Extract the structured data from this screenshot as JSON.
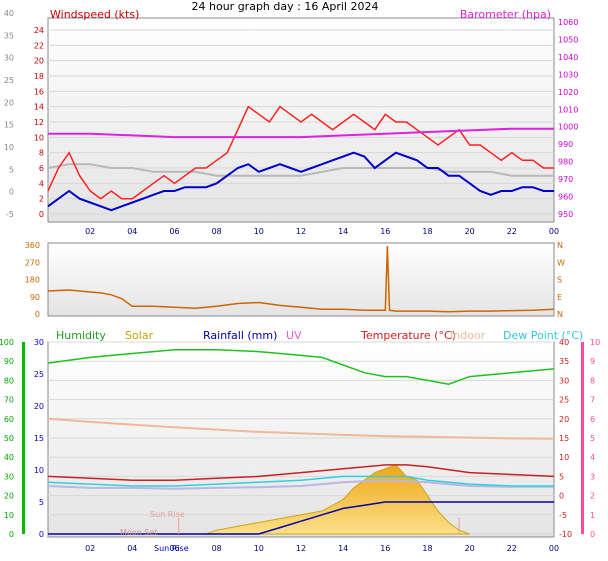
{
  "title": "24 hour graph day : 16 April 2024",
  "colors": {
    "wind": "#cc0000",
    "wind_gust": "#ff2020",
    "wind_avg": "#0000cc",
    "wind_grey": "#b8b8b8",
    "baro": "#e020e0",
    "dir": "#cc6600",
    "humidity": "#20c020",
    "solar": "#c8a000",
    "rainfall": "#0000aa",
    "uv": "#e060c0",
    "temperature": "#cc2020",
    "indoor": "#f0b898",
    "dewpoint": "#30d0e0",
    "rain_axis": "#0000cc",
    "left_green": "#00bb00",
    "right_pink": "#ff4a9a"
  },
  "chart_data": [
    {
      "type": "line",
      "name": "wind_baro",
      "labels": {
        "left": "Windspeed (kts)",
        "right": "Barometer (hpa)"
      },
      "y_left": {
        "ticks": [
          "24",
          "22",
          "20",
          "18",
          "16",
          "14",
          "12",
          "10",
          "8",
          "6",
          "4",
          "2",
          "0"
        ],
        "ylim": [
          0,
          24
        ]
      },
      "y_left_outer": {
        "ticks": [
          "40",
          "35",
          "30",
          "25",
          "20",
          "15",
          "10",
          "5",
          "0",
          "-5"
        ]
      },
      "y_right": {
        "ticks": [
          "1060",
          "1050",
          "1040",
          "1030",
          "1020",
          "1010",
          "1000",
          "990",
          "980",
          "970",
          "960",
          "950"
        ],
        "ylim": [
          950,
          1060
        ]
      },
      "x_ticks": [
        "02",
        "04",
        "06",
        "08",
        "10",
        "12",
        "14",
        "16",
        "18",
        "20",
        "22",
        "00"
      ],
      "series": {
        "gust": {
          "x": [
            0,
            0.5,
            1,
            1.5,
            2,
            2.5,
            3,
            3.5,
            4,
            4.5,
            5,
            5.5,
            6,
            6.5,
            7,
            7.5,
            8,
            8.5,
            9,
            9.5,
            10,
            10.5,
            11,
            11.5,
            12,
            12.5,
            13,
            13.5,
            14,
            14.5,
            15,
            15.5,
            16,
            16.5,
            17,
            17.5,
            18,
            18.5,
            19,
            19.5,
            20,
            20.5,
            21,
            21.5,
            22,
            22.5,
            23,
            23.5,
            24
          ],
          "y": [
            3,
            6,
            8,
            5,
            3,
            2,
            3,
            2,
            2,
            3,
            4,
            5,
            4,
            5,
            6,
            6,
            7,
            8,
            11,
            14,
            13,
            12,
            14,
            13,
            12,
            13,
            12,
            11,
            12,
            13,
            12,
            11,
            13,
            12,
            12,
            11,
            10,
            9,
            10,
            11,
            9,
            9,
            8,
            7,
            8,
            7,
            7,
            6,
            6
          ]
        },
        "average": {
          "x": [
            0,
            0.5,
            1,
            1.5,
            2,
            2.5,
            3,
            3.5,
            4,
            4.5,
            5,
            5.5,
            6,
            6.5,
            7,
            7.5,
            8,
            8.5,
            9,
            9.5,
            10,
            10.5,
            11,
            11.5,
            12,
            12.5,
            13,
            13.5,
            14,
            14.5,
            15,
            15.5,
            16,
            16.5,
            17,
            17.5,
            18,
            18.5,
            19,
            19.5,
            20,
            20.5,
            21,
            21.5,
            22,
            22.5,
            23,
            23.5,
            24
          ],
          "y": [
            1,
            2,
            3,
            2,
            1.5,
            1,
            0.5,
            1,
            1.5,
            2,
            2.5,
            3,
            3,
            3.5,
            3.5,
            3.5,
            4,
            5,
            6,
            6.5,
            5.5,
            6,
            6.5,
            6,
            5.5,
            6,
            6.5,
            7,
            7.5,
            8,
            7.5,
            6,
            7,
            8,
            7.5,
            7,
            6,
            6,
            5,
            5,
            4,
            3,
            2.5,
            3,
            3,
            3.5,
            3.5,
            3,
            3
          ]
        },
        "grey": {
          "x": [
            0,
            1,
            2,
            3,
            4,
            5,
            6,
            7,
            8,
            9,
            10,
            11,
            12,
            13,
            14,
            15,
            16,
            17,
            18,
            19,
            20,
            21,
            22,
            23,
            24
          ],
          "y": [
            6,
            6.5,
            6.5,
            6,
            6,
            5.5,
            5.5,
            5.5,
            5,
            5,
            5,
            5,
            5,
            5.5,
            6,
            6,
            6,
            6,
            6,
            5.5,
            5.5,
            5.5,
            5,
            5,
            5
          ]
        },
        "barometer": {
          "x": [
            0,
            2,
            4,
            6,
            8,
            10,
            12,
            14,
            16,
            18,
            20,
            22,
            24
          ],
          "y": [
            998,
            998,
            997,
            996,
            996,
            996,
            996,
            997,
            998,
            999,
            1000,
            1001,
            1001
          ]
        }
      }
    },
    {
      "type": "line",
      "name": "wind_direction",
      "y_left": {
        "ticks": [
          "360",
          "270",
          "180",
          "90",
          "0"
        ],
        "ylim": [
          0,
          360
        ]
      },
      "y_right": {
        "ticks": [
          "N",
          "W",
          "S",
          "E",
          "N"
        ]
      },
      "series": {
        "direction": {
          "x": [
            0,
            1,
            2,
            2.5,
            3,
            3.5,
            4,
            5,
            6,
            7,
            8,
            9,
            10,
            11,
            12,
            13,
            14,
            15,
            16,
            16.1,
            16.2,
            16.5,
            17,
            18,
            19,
            20,
            20.5,
            21,
            22,
            23,
            24
          ],
          "y": [
            120,
            125,
            115,
            110,
            100,
            80,
            40,
            40,
            35,
            30,
            40,
            55,
            60,
            45,
            35,
            25,
            25,
            20,
            20,
            355,
            20,
            15,
            15,
            15,
            12,
            15,
            15,
            15,
            18,
            20,
            25
          ]
        }
      }
    },
    {
      "type": "line",
      "name": "multi",
      "legend": [
        "Humidity",
        "Solar",
        "Rainfall (mm)",
        "UV",
        "Temperature (°C)",
        "Indoor",
        "Dew Point (°C)"
      ],
      "y_humidity": {
        "ticks": [
          "100",
          "90",
          "80",
          "70",
          "60",
          "50",
          "40",
          "30",
          "20",
          "10",
          "0"
        ],
        "ylim": [
          0,
          100
        ]
      },
      "y_rain": {
        "ticks": [
          "30",
          "25",
          "20",
          "15",
          "10",
          "5",
          "0"
        ],
        "ylim": [
          0,
          30
        ]
      },
      "y_temp": {
        "ticks": [
          "40",
          "35",
          "30",
          "25",
          "20",
          "15",
          "10",
          "5",
          "0",
          "-5",
          "-10"
        ],
        "ylim": [
          -10,
          40
        ]
      },
      "y_uv": {
        "ticks": [
          "10",
          "9",
          "8",
          "7",
          "6",
          "5",
          "4",
          "3",
          "2",
          "1",
          "0"
        ],
        "ylim": [
          0,
          10
        ]
      },
      "x_ticks": [
        "02",
        "04",
        "06",
        "08",
        "10",
        "12",
        "14",
        "16",
        "18",
        "20",
        "22",
        "00"
      ],
      "annotations": [
        "Sun Rise",
        "Moon Set",
        "Sun Rise"
      ],
      "series": {
        "humidity": {
          "x": [
            0,
            2,
            4,
            6,
            8,
            10,
            12,
            13,
            14,
            15,
            16,
            17,
            18,
            19,
            20,
            21,
            22,
            23,
            24
          ],
          "y": [
            89,
            92,
            94,
            96,
            96,
            95,
            93,
            92,
            88,
            84,
            82,
            82,
            80,
            78,
            82,
            83,
            84,
            85,
            86
          ]
        },
        "indoor": {
          "x": [
            0,
            2,
            4,
            6,
            8,
            10,
            12,
            14,
            16,
            18,
            20,
            22,
            24
          ],
          "y": [
            20,
            19.2,
            18.5,
            17.8,
            17.2,
            16.6,
            16.2,
            15.8,
            15.5,
            15.3,
            15.1,
            14.9,
            14.8
          ]
        },
        "temperature": {
          "x": [
            0,
            2,
            4,
            6,
            8,
            10,
            12,
            14,
            16,
            17,
            18,
            20,
            22,
            24
          ],
          "y": [
            5,
            4.5,
            4,
            4,
            4.5,
            5,
            6,
            7,
            8,
            8,
            7.5,
            6,
            5.5,
            5
          ]
        },
        "dewpoint": {
          "x": [
            0,
            2,
            4,
            6,
            8,
            10,
            12,
            14,
            16,
            17,
            18,
            20,
            22,
            24
          ],
          "y": [
            3.5,
            3,
            2.5,
            2.5,
            3,
            3.5,
            4,
            5,
            5,
            5,
            4,
            3,
            2.5,
            2.5
          ]
        },
        "uv_grey": {
          "x": [
            0,
            2,
            4,
            6,
            8,
            10,
            12,
            14,
            16,
            18,
            20,
            22,
            24
          ],
          "y": [
            2.5,
            2,
            2,
            1.8,
            2,
            2.2,
            2.5,
            3.5,
            4,
            3.5,
            2.5,
            2.3,
            2.3
          ]
        },
        "solar": {
          "x": [
            7.5,
            8,
            9,
            10,
            11,
            12,
            13,
            14,
            14.5,
            15,
            15.5,
            16,
            16.5,
            17,
            17.5,
            18,
            18.5,
            19,
            19.5,
            20
          ],
          "y": [
            0,
            1,
            2,
            3,
            4,
            5,
            6,
            9,
            12,
            14,
            16,
            17,
            18,
            15,
            14,
            10,
            6,
            3,
            1,
            0
          ]
        },
        "rainfall": {
          "x": [
            0,
            8,
            9,
            10,
            11,
            12,
            13,
            14,
            15,
            16,
            17,
            18,
            19,
            20,
            21,
            22,
            23,
            24
          ],
          "y": [
            0,
            0,
            0,
            0,
            1,
            2,
            3,
            4,
            4.5,
            5,
            5,
            5,
            5,
            5,
            5,
            5,
            5,
            5
          ]
        }
      }
    }
  ]
}
